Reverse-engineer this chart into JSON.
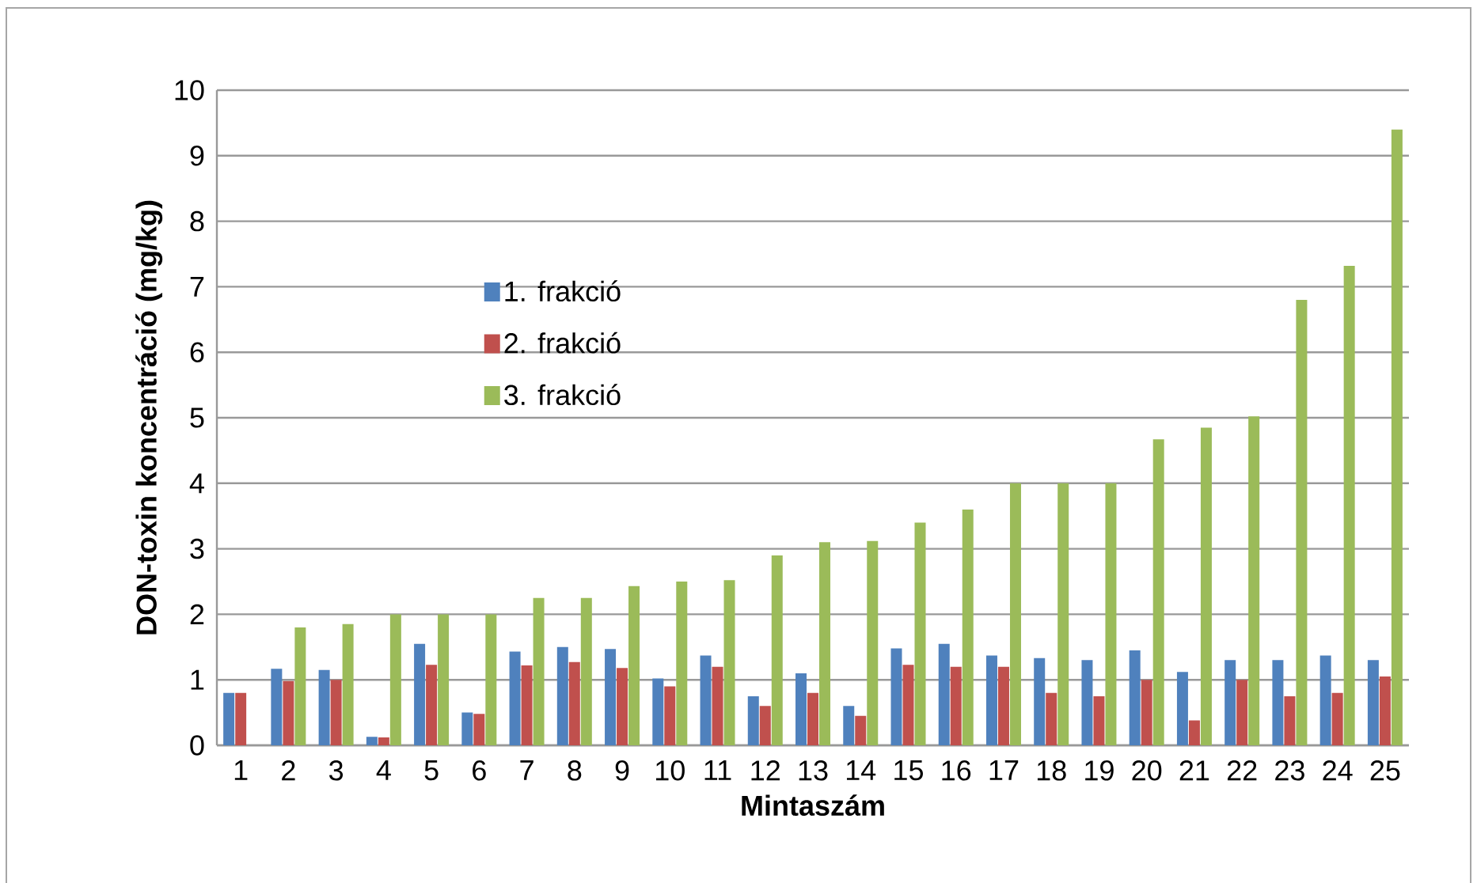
{
  "chart_data": {
    "type": "bar",
    "xlabel": "Mintaszám",
    "ylabel": "DON-toxin koncentráció (mg/kg)",
    "categories": [
      "1",
      "2",
      "3",
      "4",
      "5",
      "6",
      "7",
      "8",
      "9",
      "10",
      "11",
      "12",
      "13",
      "14",
      "15",
      "16",
      "17",
      "18",
      "19",
      "20",
      "21",
      "22",
      "23",
      "24",
      "25"
    ],
    "series": [
      {
        "name": "1. frakció",
        "color": "#4f81bd",
        "values": [
          0.8,
          1.17,
          1.15,
          0.13,
          1.55,
          0.5,
          1.43,
          1.5,
          1.47,
          1.02,
          1.37,
          0.75,
          1.1,
          0.6,
          1.48,
          1.55,
          1.37,
          1.33,
          1.3,
          1.45,
          1.12,
          1.3,
          1.3,
          1.37,
          1.3
        ]
      },
      {
        "name": "2. frakció",
        "color": "#c0504d",
        "values": [
          0.8,
          0.98,
          1.0,
          0.12,
          1.23,
          0.48,
          1.22,
          1.27,
          1.18,
          0.9,
          1.2,
          0.6,
          0.8,
          0.45,
          1.23,
          1.2,
          1.2,
          0.8,
          0.75,
          1.0,
          0.38,
          1.0,
          0.75,
          0.8,
          1.05
        ]
      },
      {
        "name": "3. frakció",
        "color": "#9bbb59",
        "values": [
          null,
          1.8,
          1.85,
          2.0,
          2.0,
          2.0,
          2.25,
          2.25,
          2.43,
          2.5,
          2.52,
          2.9,
          3.1,
          3.12,
          3.4,
          3.6,
          4.0,
          4.0,
          4.0,
          4.67,
          4.85,
          5.02,
          6.8,
          7.32,
          9.4
        ]
      }
    ],
    "ylim": [
      0,
      10
    ],
    "yticks": [
      0,
      1,
      2,
      3,
      4,
      5,
      6,
      7,
      8,
      9,
      10
    ],
    "grid": "y",
    "legend": "left"
  }
}
